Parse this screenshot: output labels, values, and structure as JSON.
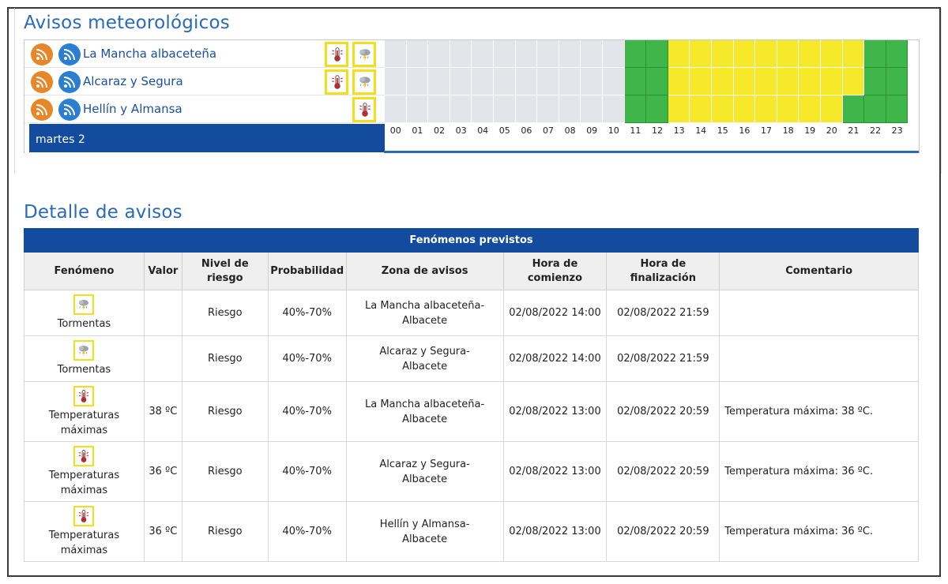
{
  "sections": {
    "warnings_title": "Avisos meteorológicos",
    "detail_title": "Detalle de avisos"
  },
  "zones": [
    {
      "name": "La Mancha albaceteña",
      "icons": [
        "thermometer-icon",
        "thunderstorm-icon"
      ],
      "hours": [
        "grey",
        "grey",
        "grey",
        "grey",
        "grey",
        "grey",
        "grey",
        "grey",
        "grey",
        "grey",
        "grey",
        "green",
        "green",
        "yellow",
        "yellow",
        "yellow",
        "yellow",
        "yellow",
        "yellow",
        "yellow",
        "yellow",
        "yellow",
        "green",
        "green"
      ]
    },
    {
      "name": "Alcaraz y Segura",
      "icons": [
        "thermometer-icon",
        "thunderstorm-icon"
      ],
      "hours": [
        "grey",
        "grey",
        "grey",
        "grey",
        "grey",
        "grey",
        "grey",
        "grey",
        "grey",
        "grey",
        "grey",
        "green",
        "green",
        "yellow",
        "yellow",
        "yellow",
        "yellow",
        "yellow",
        "yellow",
        "yellow",
        "yellow",
        "yellow",
        "green",
        "green"
      ]
    },
    {
      "name": "Hellín y Almansa",
      "icons": [
        "thermometer-icon"
      ],
      "hours": [
        "grey",
        "grey",
        "grey",
        "grey",
        "grey",
        "grey",
        "grey",
        "grey",
        "grey",
        "grey",
        "grey",
        "green",
        "green",
        "yellow",
        "yellow",
        "yellow",
        "yellow",
        "yellow",
        "yellow",
        "yellow",
        "yellow",
        "green",
        "green",
        "green"
      ]
    }
  ],
  "day_label": "martes 2",
  "hours": [
    "00",
    "01",
    "02",
    "03",
    "04",
    "05",
    "06",
    "07",
    "08",
    "09",
    "10",
    "11",
    "12",
    "13",
    "14",
    "15",
    "16",
    "17",
    "18",
    "19",
    "20",
    "21",
    "22",
    "23"
  ],
  "colors": {
    "green": "#3fb64a",
    "yellow": "#f5e92a",
    "grey": "#e2e6ea",
    "header_blue": "#134b9e",
    "title_blue": "#2a6bb5"
  },
  "table": {
    "caption": "Fenómenos previstos",
    "headers": [
      "Fenómeno",
      "Valor",
      "Nivel de riesgo",
      "Probabilidad",
      "Zona de avisos",
      "Hora de comienzo",
      "Hora de finalización",
      "Comentario"
    ],
    "rows": [
      {
        "icon": "thunderstorm-icon",
        "fenomeno": "Tormentas",
        "valor": "",
        "nivel": "Riesgo",
        "prob": "40%-70%",
        "zona": "La Mancha albaceteña-Albacete",
        "inicio": "02/08/2022 14:00",
        "fin": "02/08/2022 21:59",
        "comentario": ""
      },
      {
        "icon": "thunderstorm-icon",
        "fenomeno": "Tormentas",
        "valor": "",
        "nivel": "Riesgo",
        "prob": "40%-70%",
        "zona": "Alcaraz y Segura-Albacete",
        "inicio": "02/08/2022 14:00",
        "fin": "02/08/2022 21:59",
        "comentario": ""
      },
      {
        "icon": "thermometer-icon",
        "fenomeno": "Temperaturas máximas",
        "valor": "38 ºC",
        "nivel": "Riesgo",
        "prob": "40%-70%",
        "zona": "La Mancha albaceteña-Albacete",
        "inicio": "02/08/2022 13:00",
        "fin": "02/08/2022 20:59",
        "comentario": "Temperatura máxima: 38 ºC."
      },
      {
        "icon": "thermometer-icon",
        "fenomeno": "Temperaturas máximas",
        "valor": "36 ºC",
        "nivel": "Riesgo",
        "prob": "40%-70%",
        "zona": "Alcaraz y Segura-Albacete",
        "inicio": "02/08/2022 13:00",
        "fin": "02/08/2022 20:59",
        "comentario": "Temperatura máxima: 36 ºC."
      },
      {
        "icon": "thermometer-icon",
        "fenomeno": "Temperaturas máximas",
        "valor": "36 ºC",
        "nivel": "Riesgo",
        "prob": "40%-70%",
        "zona": "Hellín y Almansa-Albacete",
        "inicio": "02/08/2022 13:00",
        "fin": "02/08/2022 20:59",
        "comentario": "Temperatura máxima: 36 ºC."
      }
    ]
  }
}
